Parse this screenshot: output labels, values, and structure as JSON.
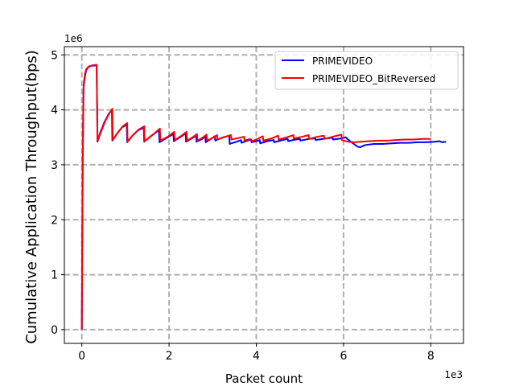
{
  "chart_data": {
    "type": "line",
    "xlabel": "Packet count",
    "ylabel": "Cumulative Application Throughput(bps)",
    "x_multiplier_label": "1e3",
    "y_multiplier_label": "1e6",
    "xlim": [
      -0.4,
      8.75
    ],
    "ylim": [
      -0.25,
      5.15
    ],
    "x_ticks": [
      0,
      2,
      4,
      6,
      8
    ],
    "x_tick_labels": [
      "0",
      "2",
      "4",
      "6",
      "8"
    ],
    "y_ticks": [
      0,
      1,
      2,
      3,
      4,
      5
    ],
    "y_tick_labels": [
      "0",
      "1",
      "2",
      "3",
      "4",
      "5"
    ],
    "grid": true,
    "legend_position": "top-right",
    "series": [
      {
        "name": "PRIMEVIDEO",
        "color": "#0000ff",
        "points": [
          [
            0,
            0
          ],
          [
            0.02,
            3.0
          ],
          [
            0.04,
            4.4
          ],
          [
            0.07,
            4.6
          ],
          [
            0.1,
            4.72
          ],
          [
            0.15,
            4.78
          ],
          [
            0.22,
            4.8
          ],
          [
            0.34,
            4.81
          ],
          [
            0.36,
            3.42
          ],
          [
            0.42,
            3.58
          ],
          [
            0.52,
            3.78
          ],
          [
            0.62,
            3.93
          ],
          [
            0.69,
            4.0
          ],
          [
            0.7,
            3.44
          ],
          [
            0.8,
            3.56
          ],
          [
            0.92,
            3.68
          ],
          [
            1.03,
            3.73
          ],
          [
            1.04,
            3.41
          ],
          [
            1.15,
            3.52
          ],
          [
            1.28,
            3.62
          ],
          [
            1.42,
            3.68
          ],
          [
            1.43,
            3.42
          ],
          [
            1.58,
            3.52
          ],
          [
            1.77,
            3.63
          ],
          [
            1.78,
            3.41
          ],
          [
            1.95,
            3.49
          ],
          [
            2.1,
            3.56
          ],
          [
            2.11,
            3.43
          ],
          [
            2.25,
            3.5
          ],
          [
            2.38,
            3.57
          ],
          [
            2.39,
            3.42
          ],
          [
            2.52,
            3.48
          ],
          [
            2.62,
            3.53
          ],
          [
            2.63,
            3.42
          ],
          [
            2.76,
            3.47
          ],
          [
            2.83,
            3.52
          ],
          [
            2.84,
            3.41
          ],
          [
            2.96,
            3.47
          ],
          [
            3.05,
            3.52
          ],
          [
            3.06,
            3.44
          ],
          [
            3.2,
            3.49
          ],
          [
            3.38,
            3.53
          ],
          [
            3.39,
            3.38
          ],
          [
            3.55,
            3.42
          ],
          [
            3.65,
            3.45
          ],
          [
            3.66,
            3.4
          ],
          [
            3.8,
            3.44
          ],
          [
            3.88,
            3.46
          ],
          [
            3.89,
            3.41
          ],
          [
            4.05,
            3.44
          ],
          [
            4.08,
            3.45
          ],
          [
            4.09,
            3.39
          ],
          [
            4.25,
            3.43
          ],
          [
            4.4,
            3.45
          ],
          [
            4.41,
            3.41
          ],
          [
            4.6,
            3.45
          ],
          [
            4.72,
            3.47
          ],
          [
            4.73,
            3.43
          ],
          [
            4.9,
            3.46
          ],
          [
            5.0,
            3.47
          ],
          [
            5.01,
            3.44
          ],
          [
            5.2,
            3.47
          ],
          [
            5.35,
            3.48
          ],
          [
            5.36,
            3.45
          ],
          [
            5.6,
            3.48
          ],
          [
            5.75,
            3.49
          ],
          [
            5.76,
            3.46
          ],
          [
            5.95,
            3.48
          ],
          [
            6.05,
            3.5
          ],
          [
            6.1,
            3.46
          ],
          [
            6.2,
            3.4
          ],
          [
            6.32,
            3.33
          ],
          [
            6.38,
            3.32
          ],
          [
            6.5,
            3.36
          ],
          [
            6.7,
            3.38
          ],
          [
            6.9,
            3.38
          ],
          [
            7.1,
            3.39
          ],
          [
            7.3,
            3.4
          ],
          [
            7.5,
            3.4
          ],
          [
            7.7,
            3.41
          ],
          [
            7.9,
            3.41
          ],
          [
            8.1,
            3.42
          ],
          [
            8.2,
            3.43
          ],
          [
            8.25,
            3.41
          ],
          [
            8.35,
            3.42
          ]
        ]
      },
      {
        "name": "PRIMEVIDEO_BitReversed",
        "color": "#ff0000",
        "points": [
          [
            0,
            0
          ],
          [
            0.02,
            3.1
          ],
          [
            0.04,
            4.45
          ],
          [
            0.07,
            4.65
          ],
          [
            0.1,
            4.74
          ],
          [
            0.16,
            4.79
          ],
          [
            0.24,
            4.81
          ],
          [
            0.34,
            4.82
          ],
          [
            0.36,
            3.43
          ],
          [
            0.44,
            3.6
          ],
          [
            0.54,
            3.8
          ],
          [
            0.64,
            3.95
          ],
          [
            0.7,
            4.02
          ],
          [
            0.71,
            3.45
          ],
          [
            0.82,
            3.58
          ],
          [
            0.94,
            3.7
          ],
          [
            1.04,
            3.76
          ],
          [
            1.05,
            3.42
          ],
          [
            1.17,
            3.54
          ],
          [
            1.3,
            3.64
          ],
          [
            1.43,
            3.7
          ],
          [
            1.44,
            3.43
          ],
          [
            1.6,
            3.53
          ],
          [
            1.79,
            3.66
          ],
          [
            1.8,
            3.44
          ],
          [
            1.97,
            3.51
          ],
          [
            2.12,
            3.6
          ],
          [
            2.13,
            3.45
          ],
          [
            2.27,
            3.52
          ],
          [
            2.4,
            3.6
          ],
          [
            2.41,
            3.44
          ],
          [
            2.54,
            3.5
          ],
          [
            2.64,
            3.56
          ],
          [
            2.65,
            3.44
          ],
          [
            2.78,
            3.5
          ],
          [
            2.86,
            3.55
          ],
          [
            2.87,
            3.44
          ],
          [
            3.0,
            3.49
          ],
          [
            3.1,
            3.54
          ],
          [
            3.11,
            3.46
          ],
          [
            3.25,
            3.5
          ],
          [
            3.42,
            3.54
          ],
          [
            3.43,
            3.46
          ],
          [
            3.6,
            3.49
          ],
          [
            3.72,
            3.51
          ],
          [
            3.73,
            3.44
          ],
          [
            3.86,
            3.47
          ],
          [
            3.9,
            3.44
          ],
          [
            3.91,
            3.43
          ],
          [
            4.05,
            3.48
          ],
          [
            4.15,
            3.52
          ],
          [
            4.16,
            3.44
          ],
          [
            4.35,
            3.48
          ],
          [
            4.5,
            3.53
          ],
          [
            4.51,
            3.46
          ],
          [
            4.7,
            3.5
          ],
          [
            4.85,
            3.54
          ],
          [
            4.86,
            3.48
          ],
          [
            5.05,
            3.51
          ],
          [
            5.2,
            3.54
          ],
          [
            5.21,
            3.47
          ],
          [
            5.4,
            3.51
          ],
          [
            5.55,
            3.53
          ],
          [
            5.56,
            3.47
          ],
          [
            5.8,
            3.52
          ],
          [
            5.95,
            3.55
          ],
          [
            5.96,
            3.45
          ],
          [
            6.1,
            3.42
          ],
          [
            6.25,
            3.41
          ],
          [
            6.4,
            3.42
          ],
          [
            6.6,
            3.43
          ],
          [
            6.8,
            3.44
          ],
          [
            7.0,
            3.44
          ],
          [
            7.2,
            3.45
          ],
          [
            7.4,
            3.46
          ],
          [
            7.6,
            3.46
          ],
          [
            7.8,
            3.47
          ],
          [
            8.0,
            3.47
          ]
        ]
      }
    ]
  }
}
